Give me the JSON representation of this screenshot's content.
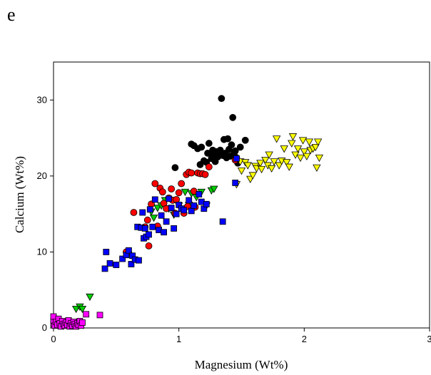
{
  "panel_label": "e",
  "chart_data": {
    "type": "scatter",
    "title": "",
    "xlabel": "Magnesium (Wt%)",
    "ylabel": "Calcium (Wt%)",
    "xlim": [
      0,
      3
    ],
    "ylim": [
      0,
      35
    ],
    "xticks": [
      0,
      1,
      2,
      3
    ],
    "xtick_labels": [
      "0",
      "1",
      "2",
      "3"
    ],
    "yticks": [
      0,
      10,
      20,
      30
    ],
    "ytick_labels": [
      "0",
      "10",
      "20",
      "30"
    ],
    "grid": false,
    "legend": "none",
    "series": [
      {
        "marker": "square",
        "color": "#ff00ff",
        "points": [
          [
            0,
            0.5
          ],
          [
            0,
            1.0
          ],
          [
            0,
            1.5
          ],
          [
            0.01,
            0.3
          ],
          [
            0.02,
            0.8
          ],
          [
            0.03,
            0.4
          ],
          [
            0.04,
            1.2
          ],
          [
            0.05,
            0.6
          ],
          [
            0.06,
            0.2
          ],
          [
            0.07,
            0.9
          ],
          [
            0.08,
            0.5
          ],
          [
            0.09,
            0.3
          ],
          [
            0.1,
            0.7
          ],
          [
            0.11,
            0.4
          ],
          [
            0.12,
            1.0
          ],
          [
            0.13,
            0.2
          ],
          [
            0.14,
            0.6
          ],
          [
            0.15,
            0.3
          ],
          [
            0.16,
            0.8
          ],
          [
            0.17,
            0.5
          ],
          [
            0.18,
            0.2
          ],
          [
            0.19,
            0.6
          ],
          [
            0.2,
            0.4
          ],
          [
            0.21,
            0.9
          ],
          [
            0.22,
            0.3
          ],
          [
            0.23,
            0.7
          ],
          [
            0.26,
            1.8
          ],
          [
            0.37,
            1.7
          ]
        ]
      },
      {
        "marker": "circle",
        "color": "#000000",
        "points": [
          [
            0.97,
            21.1
          ],
          [
            1.1,
            24.2
          ],
          [
            1.12,
            24.0
          ],
          [
            1.15,
            23.6
          ],
          [
            1.17,
            21.5
          ],
          [
            1.18,
            23.8
          ],
          [
            1.2,
            22.0
          ],
          [
            1.22,
            21.8
          ],
          [
            1.23,
            23.0
          ],
          [
            1.24,
            24.3
          ],
          [
            1.26,
            22.3
          ],
          [
            1.27,
            23.4
          ],
          [
            1.28,
            22.8
          ],
          [
            1.29,
            21.9
          ],
          [
            1.3,
            23.2
          ],
          [
            1.31,
            22.5
          ],
          [
            1.32,
            22.9
          ],
          [
            1.33,
            23.4
          ],
          [
            1.34,
            30.2
          ],
          [
            1.35,
            22.7
          ],
          [
            1.36,
            24.8
          ],
          [
            1.37,
            23.0
          ],
          [
            1.38,
            22.4
          ],
          [
            1.39,
            24.9
          ],
          [
            1.4,
            23.5
          ],
          [
            1.41,
            22.6
          ],
          [
            1.42,
            24.1
          ],
          [
            1.43,
            27.7
          ],
          [
            1.44,
            22.9
          ],
          [
            1.45,
            23.3
          ],
          [
            1.46,
            22.4
          ],
          [
            1.47,
            21.7
          ],
          [
            1.49,
            23.8
          ],
          [
            1.53,
            24.7
          ]
        ]
      },
      {
        "marker": "triangle-down",
        "color": "#ffff00",
        "points": [
          [
            1.46,
            18.9
          ],
          [
            1.49,
            21.9
          ],
          [
            1.5,
            20.7
          ],
          [
            1.53,
            21.8
          ],
          [
            1.55,
            21.4
          ],
          [
            1.57,
            19.6
          ],
          [
            1.59,
            20.1
          ],
          [
            1.61,
            21.3
          ],
          [
            1.62,
            21.0
          ],
          [
            1.65,
            21.7
          ],
          [
            1.66,
            20.9
          ],
          [
            1.69,
            22.1
          ],
          [
            1.71,
            21.4
          ],
          [
            1.72,
            22.8
          ],
          [
            1.74,
            21.0
          ],
          [
            1.76,
            21.9
          ],
          [
            1.78,
            24.9
          ],
          [
            1.8,
            21.4
          ],
          [
            1.82,
            22.0
          ],
          [
            1.84,
            23.6
          ],
          [
            1.86,
            21.8
          ],
          [
            1.88,
            21.2
          ],
          [
            1.9,
            24.3
          ],
          [
            1.91,
            25.2
          ],
          [
            1.93,
            22.8
          ],
          [
            1.95,
            23.6
          ],
          [
            1.97,
            22.4
          ],
          [
            1.99,
            24.7
          ],
          [
            2.0,
            23.2
          ],
          [
            2.02,
            22.6
          ],
          [
            2.04,
            24.5
          ],
          [
            2.05,
            23.4
          ],
          [
            2.07,
            23.6
          ],
          [
            2.09,
            23.8
          ],
          [
            2.1,
            21.1
          ],
          [
            2.11,
            24.5
          ],
          [
            2.12,
            22.4
          ]
        ]
      },
      {
        "marker": "triangle-down",
        "color": "#00cc00",
        "points": [
          [
            0.18,
            2.5
          ],
          [
            0.21,
            2.8
          ],
          [
            0.23,
            2.5
          ],
          [
            0.29,
            4.1
          ],
          [
            0.78,
            15.3
          ],
          [
            0.8,
            14.5
          ],
          [
            0.83,
            15.8
          ],
          [
            0.86,
            16.1
          ],
          [
            0.89,
            16.8
          ],
          [
            0.92,
            15.7
          ],
          [
            0.96,
            14.9
          ],
          [
            1.0,
            16.1
          ],
          [
            1.05,
            17.9
          ],
          [
            1.08,
            16.2
          ],
          [
            1.1,
            17.7
          ],
          [
            1.14,
            17.2
          ],
          [
            1.18,
            17.9
          ],
          [
            1.22,
            16.1
          ],
          [
            1.26,
            18.1
          ],
          [
            1.28,
            18.3
          ]
        ]
      },
      {
        "marker": "circle",
        "color": "#ff0000",
        "points": [
          [
            0.58,
            10.0
          ],
          [
            0.6,
            9.9
          ],
          [
            0.64,
            15.2
          ],
          [
            0.73,
            13.3
          ],
          [
            0.75,
            14.2
          ],
          [
            0.76,
            10.8
          ],
          [
            0.78,
            16.3
          ],
          [
            0.81,
            19.0
          ],
          [
            0.83,
            13.4
          ],
          [
            0.85,
            18.4
          ],
          [
            0.87,
            17.9
          ],
          [
            0.88,
            16.4
          ],
          [
            0.9,
            15.7
          ],
          [
            0.92,
            17.1
          ],
          [
            0.94,
            18.3
          ],
          [
            0.95,
            16.8
          ],
          [
            0.97,
            15.1
          ],
          [
            0.98,
            16.9
          ],
          [
            1.0,
            17.8
          ],
          [
            1.02,
            19.0
          ],
          [
            1.04,
            15.1
          ],
          [
            1.06,
            20.2
          ],
          [
            1.07,
            16.0
          ],
          [
            1.08,
            20.5
          ],
          [
            1.1,
            20.4
          ],
          [
            1.12,
            18.0
          ],
          [
            1.13,
            15.9
          ],
          [
            1.15,
            20.4
          ],
          [
            1.17,
            20.3
          ],
          [
            1.19,
            20.3
          ],
          [
            1.21,
            20.2
          ],
          [
            1.24,
            21.2
          ],
          [
            1.45,
            22.1
          ]
        ]
      },
      {
        "marker": "square",
        "color": "#0000ff",
        "points": [
          [
            0.41,
            7.8
          ],
          [
            0.42,
            10.0
          ],
          [
            0.45,
            8.5
          ],
          [
            0.5,
            8.3
          ],
          [
            0.55,
            9.1
          ],
          [
            0.58,
            9.6
          ],
          [
            0.6,
            10.2
          ],
          [
            0.62,
            8.4
          ],
          [
            0.63,
            9.5
          ],
          [
            0.65,
            9.0
          ],
          [
            0.67,
            13.3
          ],
          [
            0.68,
            8.9
          ],
          [
            0.7,
            13.2
          ],
          [
            0.71,
            15.2
          ],
          [
            0.72,
            11.8
          ],
          [
            0.73,
            13.1
          ],
          [
            0.74,
            12.0
          ],
          [
            0.76,
            12.3
          ],
          [
            0.77,
            15.6
          ],
          [
            0.79,
            13.3
          ],
          [
            0.81,
            16.9
          ],
          [
            0.84,
            12.9
          ],
          [
            0.86,
            14.8
          ],
          [
            0.88,
            12.6
          ],
          [
            0.9,
            14.0
          ],
          [
            0.92,
            17.0
          ],
          [
            0.94,
            15.8
          ],
          [
            0.96,
            13.1
          ],
          [
            0.98,
            15.0
          ],
          [
            1.0,
            16.2
          ],
          [
            1.02,
            15.7
          ],
          [
            1.04,
            15.5
          ],
          [
            1.08,
            16.8
          ],
          [
            1.1,
            15.4
          ],
          [
            1.12,
            16.1
          ],
          [
            1.16,
            17.6
          ],
          [
            1.18,
            16.6
          ],
          [
            1.2,
            15.7
          ],
          [
            1.22,
            16.3
          ],
          [
            1.35,
            14.0
          ],
          [
            1.45,
            19.1
          ],
          [
            1.46,
            22.3
          ]
        ]
      }
    ]
  }
}
